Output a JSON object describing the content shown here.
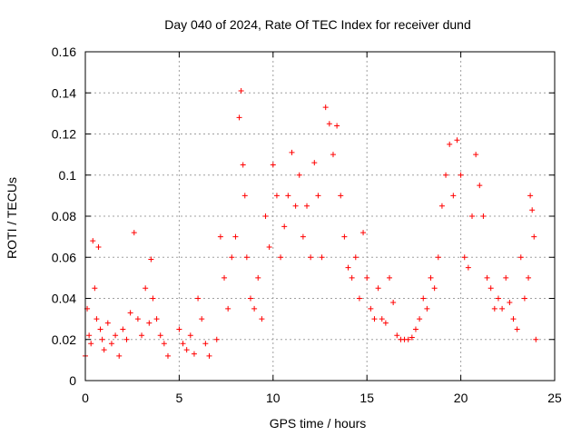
{
  "chart_data": {
    "type": "scatter",
    "title": "Day 040 of 2024, Rate Of TEC Index for receiver dund",
    "xlabel": "GPS time / hours",
    "ylabel": "ROTI / TECUs",
    "xlim": [
      0,
      25
    ],
    "ylim": [
      0,
      0.16
    ],
    "xticks": [
      0,
      5,
      10,
      15,
      20,
      25
    ],
    "xtick_labels": [
      "0",
      "5",
      "10",
      "15",
      "20",
      "25"
    ],
    "yticks": [
      0,
      0.02,
      0.04,
      0.06,
      0.08,
      0.1,
      0.12,
      0.14,
      0.16
    ],
    "ytick_labels": [
      "0",
      "0.02",
      "0.04",
      "0.06",
      "0.08",
      "0.1",
      "0.12",
      "0.14",
      "0.16"
    ],
    "grid": true,
    "marker": "+",
    "color": "#ff0000",
    "series": [
      {
        "points": [
          [
            0.0,
            0.012
          ],
          [
            0.1,
            0.035
          ],
          [
            0.2,
            0.022
          ],
          [
            0.3,
            0.018
          ],
          [
            0.4,
            0.068
          ],
          [
            0.5,
            0.045
          ],
          [
            0.6,
            0.03
          ],
          [
            0.7,
            0.065
          ],
          [
            0.8,
            0.025
          ],
          [
            0.9,
            0.02
          ],
          [
            1.0,
            0.015
          ],
          [
            1.2,
            0.028
          ],
          [
            1.4,
            0.018
          ],
          [
            1.6,
            0.022
          ],
          [
            1.8,
            0.012
          ],
          [
            2.0,
            0.025
          ],
          [
            2.2,
            0.02
          ],
          [
            2.4,
            0.033
          ],
          [
            2.6,
            0.072
          ],
          [
            2.8,
            0.03
          ],
          [
            3.0,
            0.022
          ],
          [
            3.2,
            0.045
          ],
          [
            3.4,
            0.028
          ],
          [
            3.5,
            0.059
          ],
          [
            3.6,
            0.04
          ],
          [
            3.8,
            0.03
          ],
          [
            4.0,
            0.022
          ],
          [
            4.2,
            0.018
          ],
          [
            4.4,
            0.012
          ],
          [
            5.0,
            0.025
          ],
          [
            5.2,
            0.018
          ],
          [
            5.4,
            0.015
          ],
          [
            5.6,
            0.022
          ],
          [
            5.8,
            0.013
          ],
          [
            6.0,
            0.04
          ],
          [
            6.2,
            0.03
          ],
          [
            6.4,
            0.018
          ],
          [
            6.6,
            0.012
          ],
          [
            7.0,
            0.02
          ],
          [
            7.2,
            0.07
          ],
          [
            7.4,
            0.05
          ],
          [
            7.6,
            0.035
          ],
          [
            7.8,
            0.06
          ],
          [
            8.0,
            0.07
          ],
          [
            8.2,
            0.128
          ],
          [
            8.3,
            0.141
          ],
          [
            8.4,
            0.105
          ],
          [
            8.5,
            0.09
          ],
          [
            8.6,
            0.06
          ],
          [
            8.8,
            0.04
          ],
          [
            9.0,
            0.035
          ],
          [
            9.2,
            0.05
          ],
          [
            9.4,
            0.03
          ],
          [
            9.6,
            0.08
          ],
          [
            9.8,
            0.065
          ],
          [
            10.0,
            0.105
          ],
          [
            10.2,
            0.09
          ],
          [
            10.4,
            0.06
          ],
          [
            10.6,
            0.075
          ],
          [
            10.8,
            0.09
          ],
          [
            11.0,
            0.111
          ],
          [
            11.2,
            0.085
          ],
          [
            11.4,
            0.1
          ],
          [
            11.6,
            0.07
          ],
          [
            11.8,
            0.085
          ],
          [
            12.0,
            0.06
          ],
          [
            12.2,
            0.106
          ],
          [
            12.4,
            0.09
          ],
          [
            12.6,
            0.06
          ],
          [
            12.8,
            0.133
          ],
          [
            13.0,
            0.125
          ],
          [
            13.2,
            0.11
          ],
          [
            13.4,
            0.124
          ],
          [
            13.6,
            0.09
          ],
          [
            13.8,
            0.07
          ],
          [
            14.0,
            0.055
          ],
          [
            14.2,
            0.05
          ],
          [
            14.4,
            0.06
          ],
          [
            14.6,
            0.04
          ],
          [
            14.8,
            0.072
          ],
          [
            15.0,
            0.05
          ],
          [
            15.2,
            0.035
          ],
          [
            15.4,
            0.03
          ],
          [
            15.6,
            0.045
          ],
          [
            15.8,
            0.03
          ],
          [
            16.0,
            0.028
          ],
          [
            16.2,
            0.05
          ],
          [
            16.4,
            0.038
          ],
          [
            16.6,
            0.022
          ],
          [
            16.8,
            0.02
          ],
          [
            17.0,
            0.02
          ],
          [
            17.2,
            0.02
          ],
          [
            17.4,
            0.021
          ],
          [
            17.6,
            0.025
          ],
          [
            17.8,
            0.03
          ],
          [
            18.0,
            0.04
          ],
          [
            18.2,
            0.035
          ],
          [
            18.4,
            0.05
          ],
          [
            18.6,
            0.045
          ],
          [
            18.8,
            0.06
          ],
          [
            19.0,
            0.085
          ],
          [
            19.2,
            0.1
          ],
          [
            19.4,
            0.115
          ],
          [
            19.6,
            0.09
          ],
          [
            19.8,
            0.117
          ],
          [
            20.0,
            0.1
          ],
          [
            20.2,
            0.06
          ],
          [
            20.4,
            0.055
          ],
          [
            20.6,
            0.08
          ],
          [
            20.8,
            0.11
          ],
          [
            21.0,
            0.095
          ],
          [
            21.2,
            0.08
          ],
          [
            21.4,
            0.05
          ],
          [
            21.6,
            0.045
          ],
          [
            21.8,
            0.035
          ],
          [
            22.0,
            0.04
          ],
          [
            22.2,
            0.035
          ],
          [
            22.4,
            0.05
          ],
          [
            22.6,
            0.038
          ],
          [
            22.8,
            0.03
          ],
          [
            23.0,
            0.025
          ],
          [
            23.2,
            0.06
          ],
          [
            23.4,
            0.04
          ],
          [
            23.6,
            0.05
          ],
          [
            23.7,
            0.09
          ],
          [
            23.8,
            0.083
          ],
          [
            23.9,
            0.07
          ],
          [
            24.0,
            0.02
          ]
        ]
      }
    ]
  }
}
